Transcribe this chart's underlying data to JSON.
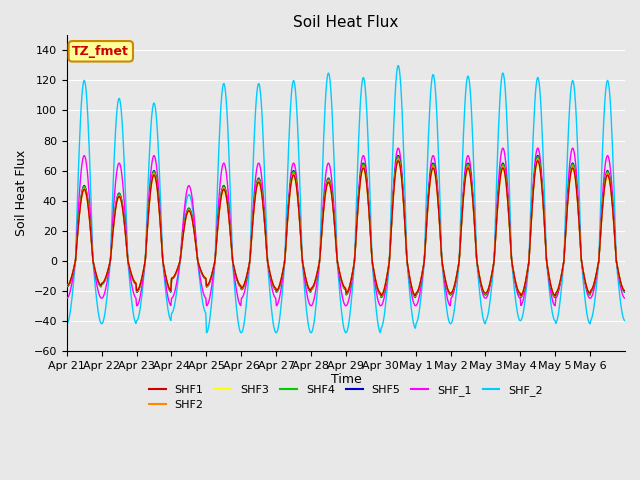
{
  "title": "Soil Heat Flux",
  "ylabel": "Soil Heat Flux",
  "xlabel": "Time",
  "ylim": [
    -60,
    150
  ],
  "yticks": [
    -60,
    -40,
    -20,
    0,
    20,
    40,
    60,
    80,
    100,
    120,
    140
  ],
  "x_tick_labels": [
    "Apr 21",
    "Apr 22",
    "Apr 23",
    "Apr 24",
    "Apr 25",
    "Apr 26",
    "Apr 27",
    "Apr 28",
    "Apr 29",
    "Apr 30",
    "May 1",
    "May 2",
    "May 3",
    "May 4",
    "May 5",
    "May 6"
  ],
  "series_colors": {
    "SHF1": "#cc0000",
    "SHF2": "#ff8800",
    "SHF3": "#ffff00",
    "SHF4": "#00cc00",
    "SHF5": "#0000cc",
    "SHF_1": "#ff00ff",
    "SHF_2": "#00ccff"
  },
  "bg_color": "#e8e8e8",
  "plot_bg_color": "#e8e8e8",
  "annotation_text": "TZ_fmet",
  "annotation_bg": "#ffff99",
  "annotation_border": "#cc8800",
  "annotation_text_color": "#cc0000",
  "n_days": 16,
  "points_per_day": 48
}
